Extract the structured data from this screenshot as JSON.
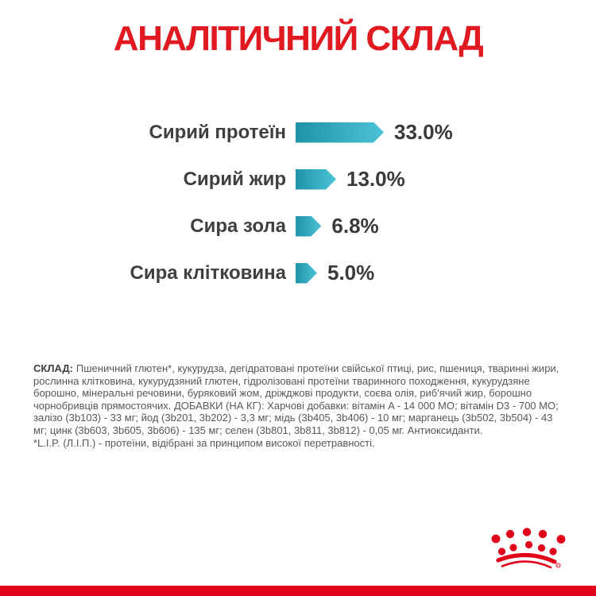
{
  "title": "АНАЛІТИЧНИЙ СКЛАД",
  "chart_data": {
    "type": "bar",
    "orientation": "horizontal",
    "title": "АНАЛІТИЧНИЙ СКЛАД",
    "categories": [
      "Сирий протеїн",
      "Сирий жир",
      "Сира зола",
      "Сира клітковина"
    ],
    "values": [
      33.0,
      13.0,
      6.8,
      5.0
    ],
    "value_labels": [
      "33.0%",
      "13.0%",
      "6.8%",
      "5.0%"
    ],
    "xlabel": "",
    "ylabel": "",
    "grid": false,
    "legend": false,
    "bar_color_start": "#1f93a9",
    "bar_color_end": "#4cc3d5"
  },
  "composition": {
    "label": "СКЛАД:",
    "text": "Пшеничний глютен*, кукурудза, дегідратовані протеїни свійської птиці, рис, пшениця, тваринні жири, рослинна клітковина, кукурудзяний глютен, гідролізовані протеїни тваринного походження, кукурудзяне борошно, мінеральні речовини, буряковий жом, дріжджові продукти, соєва олія, риб'ячий жир, борошно чорнобривців прямостоячих. ДОБАВКИ (НА КГ): Харчові добавки: вітамін A - 14 000 МО; вітамін D3 - 700 МО; залізо (3b103) - 33 мг; йод (3b201, 3b202) - 3,3 мг; мідь (3b405, 3b406) - 10 мг; марганець (3b502, 3b504) - 43 мг; цинк (3b603, 3b605, 3b606) - 135 мг; селен (3b801, 3b811, 3b812) - 0,05 мг. Антиоксиданти.",
    "footnote": "*L.I.P. (Л.І.П.) - протеїни, відібрані за принципом високої перетравності."
  },
  "footer": {
    "logo_name": "royal-canin-crown",
    "registered_mark": "®",
    "bar_color": "#e2001a",
    "logo_color": "#e2001a"
  },
  "colors": {
    "title_red": "#e11a21",
    "label_gray": "#3f3f3f",
    "body_gray": "#55575b",
    "background": "#ffffff"
  }
}
